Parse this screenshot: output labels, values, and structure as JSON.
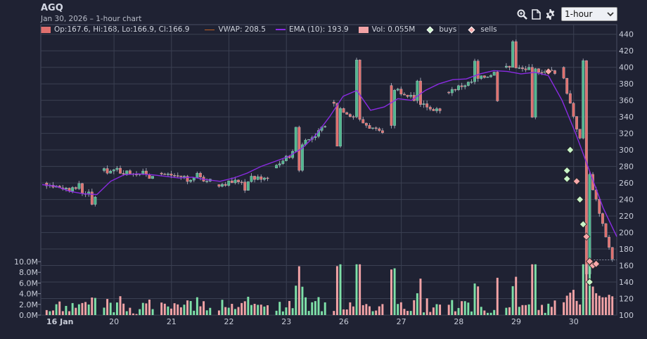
{
  "header": {
    "symbol": "AGQ",
    "subtitle": "Jan 30, 2026 – 1-hour chart",
    "interval": "1-hour"
  },
  "toolbar": {
    "icons": [
      "zoom-icon",
      "document-icon",
      "gear-icon"
    ]
  },
  "legend": {
    "ohlc": "Op:167.6, Hi:168, Lo:166.9, Cl:166.9",
    "vwap": "VWAP: 208.5",
    "ema": "EMA (10): 193.9",
    "vol": "Vol: 0.055M",
    "buys": "buys",
    "sells": "sells"
  },
  "colors": {
    "background": "#1f2233",
    "up": "#4fb88e",
    "down": "#e0706e",
    "ema": "#8a2be2",
    "vol_up": "#7ee0a8",
    "vol_down": "#f2a3a6",
    "buy_marker": "#c8f5c8",
    "sell_marker": "#f7a8aa"
  },
  "chart_data": {
    "type": "candlestick",
    "y_price_ticks": [
      100,
      120,
      140,
      160,
      180,
      200,
      220,
      240,
      260,
      280,
      300,
      320,
      340,
      360,
      380,
      400,
      420,
      440
    ],
    "y_price_range": [
      100,
      450
    ],
    "y_volume_ticks": [
      "0.0M",
      "2.0M",
      "4.0M",
      "6.0M",
      "8.0M",
      "10.0M"
    ],
    "y_volume_range": [
      0,
      10
    ],
    "x_day_labels": [
      "16 Jan",
      "20",
      "21",
      "22",
      "23",
      "26",
      "27",
      "28",
      "29",
      "30"
    ],
    "day_ohlc": [
      {
        "day": "16 Jan",
        "open": 260,
        "high": 262,
        "low": 232,
        "close": 245
      },
      {
        "day": "20",
        "open": 275,
        "high": 279,
        "low": 265,
        "close": 271
      },
      {
        "day": "21",
        "open": 272,
        "high": 276,
        "low": 260,
        "close": 263
      },
      {
        "day": "22",
        "open": 258,
        "high": 270,
        "low": 250,
        "close": 268
      },
      {
        "day": "23",
        "open": 278,
        "high": 330,
        "low": 275,
        "close": 328
      },
      {
        "day": "26",
        "open": 358,
        "high": 412,
        "low": 305,
        "close": 318
      },
      {
        "day": "27",
        "open": 378,
        "high": 385,
        "low": 325,
        "close": 345
      },
      {
        "day": "28",
        "open": 370,
        "high": 408,
        "low": 360,
        "close": 395
      },
      {
        "day": "29",
        "open": 400,
        "high": 435,
        "low": 335,
        "close": 395
      },
      {
        "day": "30",
        "open": 400,
        "high": 410,
        "low": 150,
        "close": 166.9
      }
    ],
    "ema": [
      258,
      256,
      250,
      247,
      246,
      262,
      270,
      271,
      270,
      268,
      266,
      267,
      264,
      262,
      266,
      272,
      280,
      286,
      292,
      302,
      318,
      340,
      365,
      372,
      348,
      352,
      362,
      360,
      372,
      380,
      385,
      386,
      392,
      396,
      395,
      392,
      394,
      390,
      360,
      320,
      275,
      230,
      195
    ]
  }
}
